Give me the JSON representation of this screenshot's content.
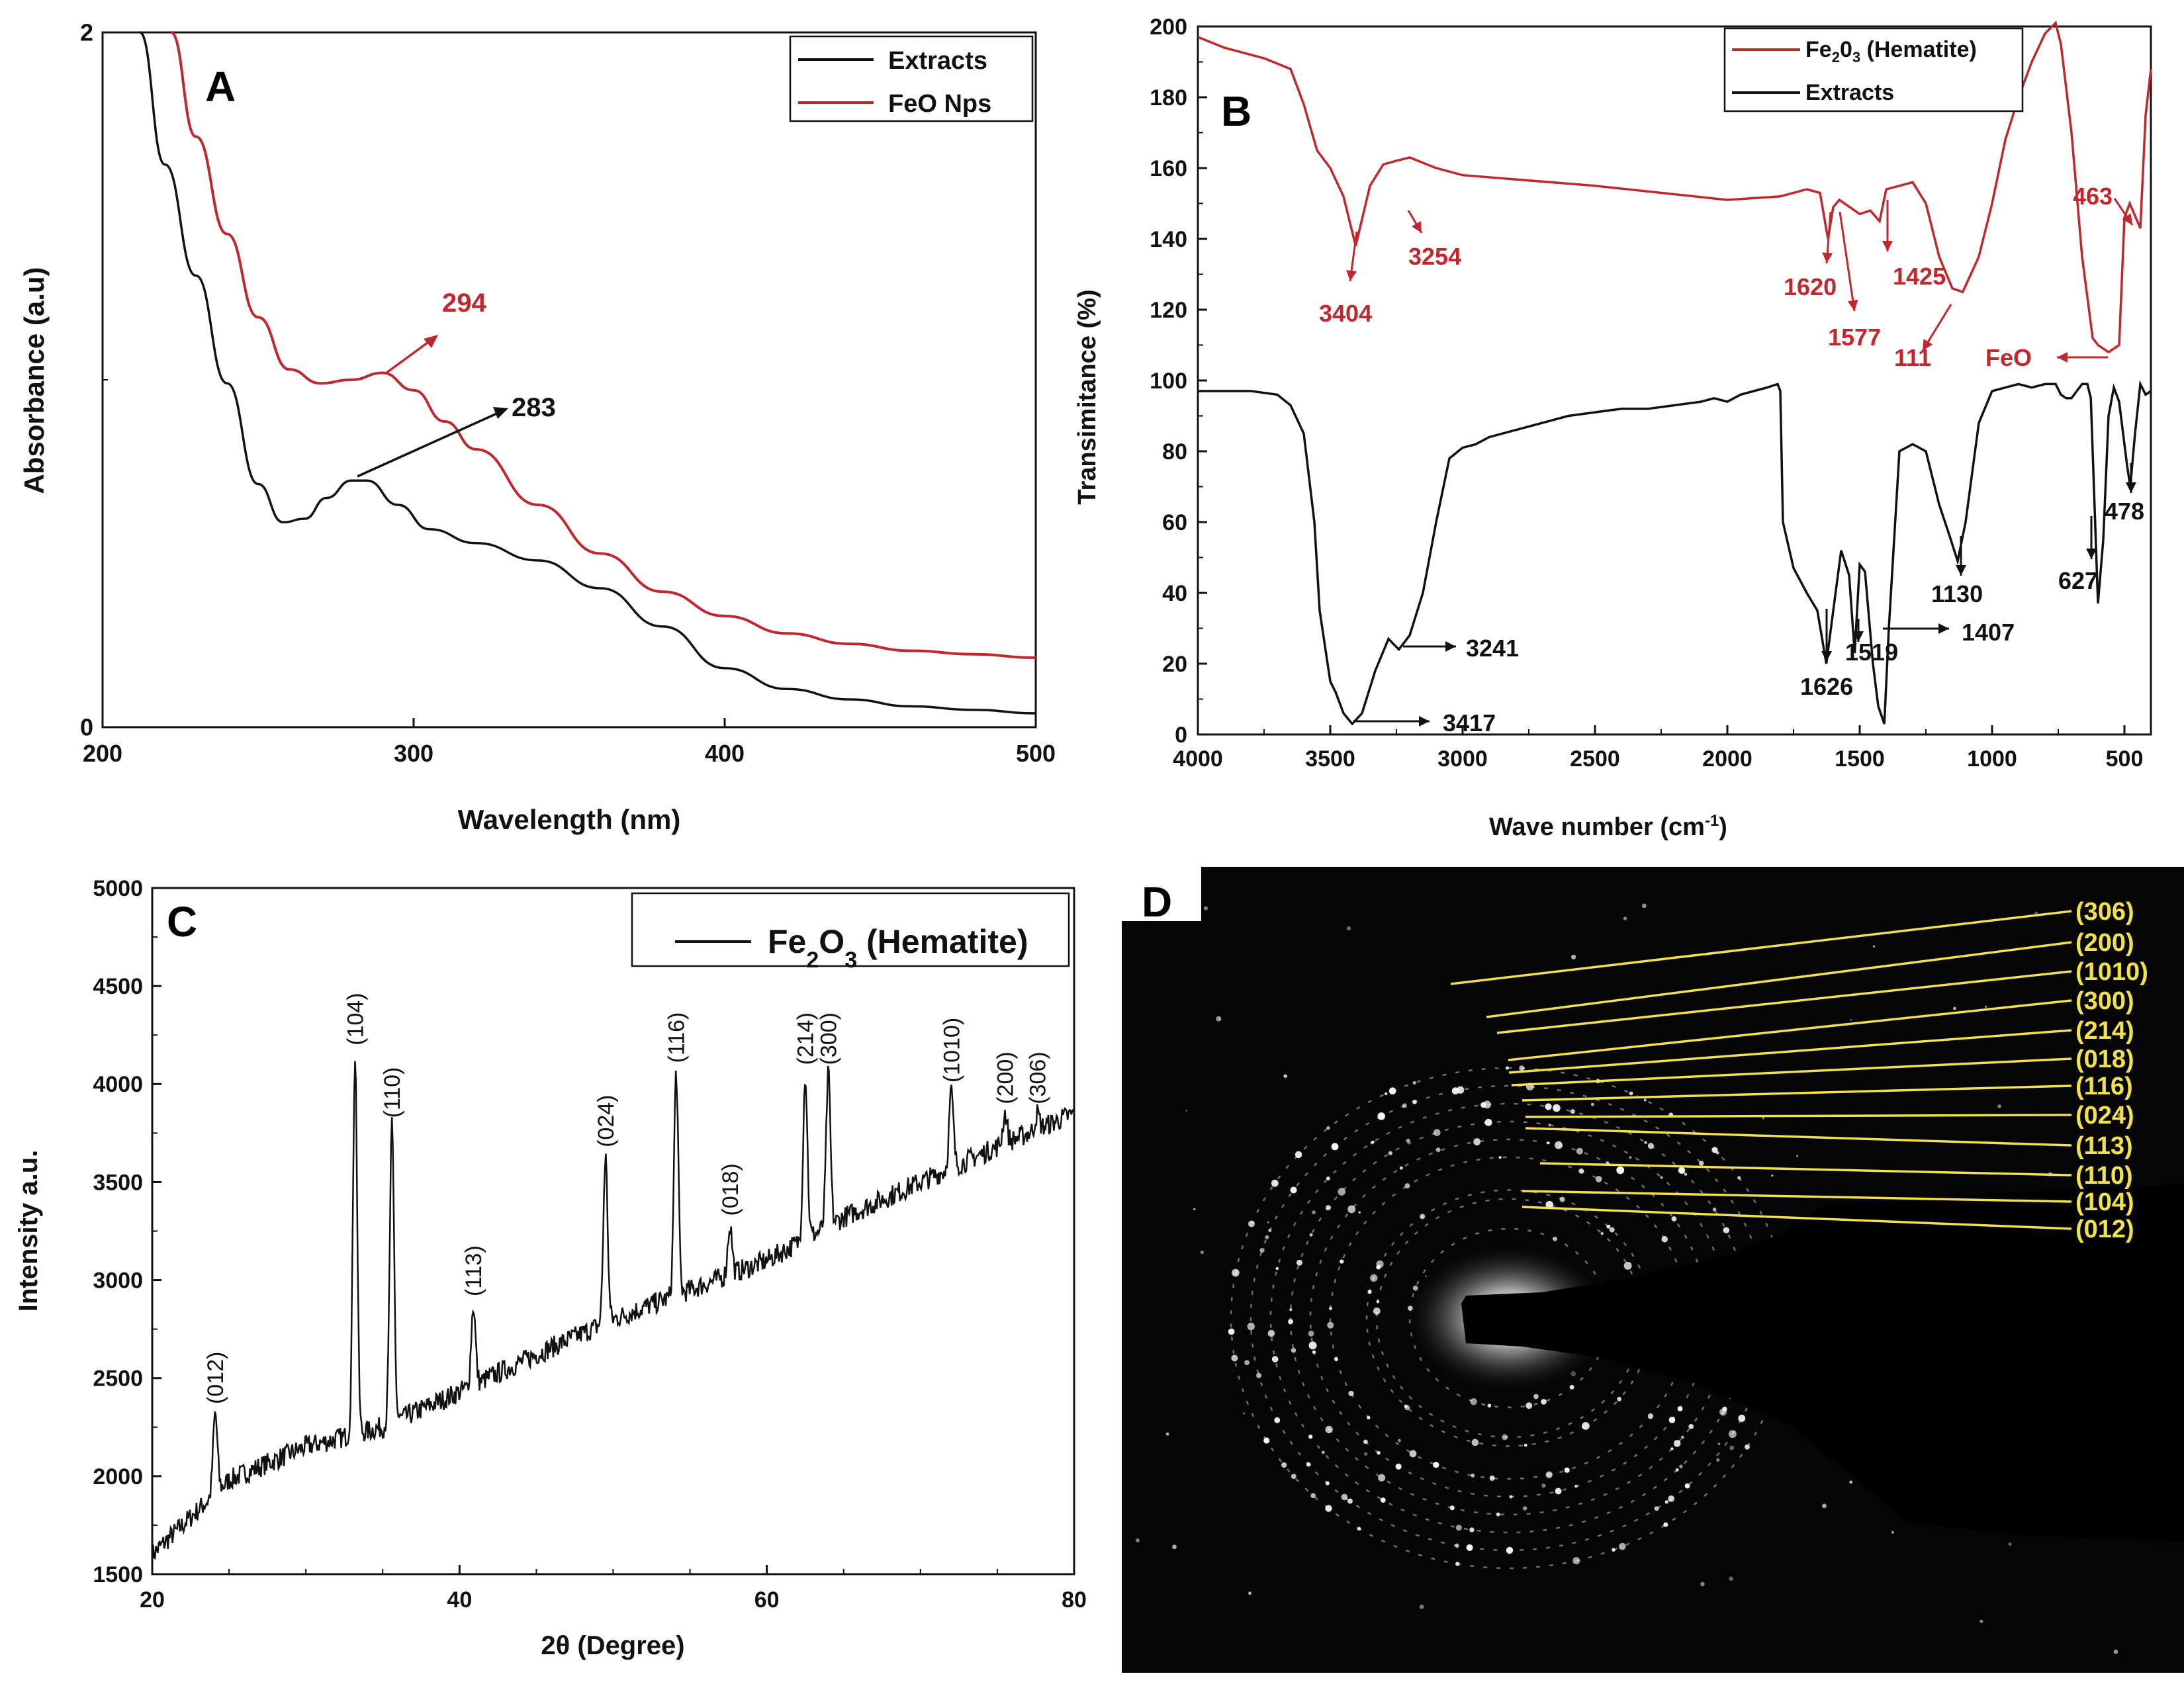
{
  "colors": {
    "red": "#c0282d",
    "black": "#111111",
    "yellow": "#f2e14a"
  },
  "chart_data": [
    {
      "panel": "A",
      "type": "line",
      "xlabel": "Wavelength (nm)",
      "ylabel": "Absorbance (a.u)",
      "xlim": [
        200,
        500
      ],
      "ylim": [
        0,
        2
      ],
      "xticks": [
        200,
        300,
        400,
        500
      ],
      "yticks": [
        0,
        2
      ],
      "legend": [
        "Extracts",
        "FeO Nps"
      ],
      "series": [
        {
          "name": "Extracts",
          "color": "#111111",
          "x": [
            212,
            220,
            230,
            240,
            250,
            258,
            265,
            272,
            280,
            285,
            295,
            305,
            320,
            340,
            360,
            380,
            400,
            420,
            440,
            460,
            480,
            500
          ],
          "y": [
            2.0,
            1.62,
            1.3,
            0.99,
            0.7,
            0.59,
            0.6,
            0.66,
            0.71,
            0.71,
            0.64,
            0.57,
            0.53,
            0.48,
            0.4,
            0.29,
            0.17,
            0.11,
            0.08,
            0.06,
            0.05,
            0.04
          ]
        },
        {
          "name": "FeO Nps",
          "color": "#c0282d",
          "x": [
            222,
            230,
            240,
            250,
            260,
            270,
            280,
            290,
            300,
            310,
            320,
            340,
            360,
            380,
            400,
            420,
            440,
            460,
            480,
            500
          ],
          "y": [
            2.0,
            1.7,
            1.42,
            1.18,
            1.03,
            0.99,
            1.0,
            1.02,
            0.97,
            0.88,
            0.8,
            0.64,
            0.5,
            0.39,
            0.32,
            0.27,
            0.24,
            0.22,
            0.21,
            0.2
          ]
        }
      ],
      "annotations": [
        {
          "text": "294",
          "color": "#c0282d"
        },
        {
          "text": "283",
          "color": "#111111"
        }
      ]
    },
    {
      "panel": "B",
      "type": "line",
      "xlabel": "Wave number (cm⁻¹)",
      "ylabel": "Transimitance (%)",
      "xlim": [
        4000,
        400
      ],
      "ylim": [
        0,
        200
      ],
      "xticks": [
        4000,
        3500,
        3000,
        2500,
        2000,
        1500,
        1000,
        500
      ],
      "yticks": [
        0,
        20,
        40,
        60,
        80,
        100,
        120,
        140,
        160,
        180,
        200
      ],
      "legend": [
        "Fe₂O₃ (Hematite)",
        "Extracts"
      ],
      "series": [
        {
          "name": "Fe2O3 (Hematite)",
          "color": "#c0282d",
          "x": [
            4000,
            3900,
            3750,
            3650,
            3600,
            3550,
            3500,
            3450,
            3404,
            3350,
            3300,
            3254,
            3200,
            3100,
            3000,
            2500,
            2000,
            1800,
            1700,
            1650,
            1620,
            1600,
            1577,
            1500,
            1460,
            1425,
            1400,
            1300,
            1250,
            1200,
            1150,
            1111,
            1050,
            1000,
            950,
            900,
            850,
            800,
            760,
            740,
            700,
            660,
            620,
            600,
            560,
            520,
            500,
            480,
            463,
            440,
            420,
            400
          ],
          "y": [
            197,
            194,
            191,
            188,
            178,
            165,
            160,
            152,
            138,
            155,
            161,
            162,
            163,
            160,
            158,
            155,
            151,
            152,
            154,
            153,
            140,
            149,
            151,
            147,
            148,
            145,
            154,
            156,
            150,
            135,
            126,
            125,
            135,
            150,
            168,
            180,
            190,
            198,
            201,
            195,
            170,
            135,
            112,
            110,
            108,
            110,
            146,
            150,
            147,
            143,
            175,
            188
          ]
        },
        {
          "name": "Extracts",
          "color": "#111111",
          "x": [
            4000,
            3800,
            3700,
            3650,
            3600,
            3560,
            3540,
            3500,
            3480,
            3450,
            3417,
            3380,
            3330,
            3280,
            3241,
            3200,
            3150,
            3100,
            3050,
            3000,
            2950,
            2900,
            2800,
            2700,
            2600,
            2500,
            2400,
            2300,
            2200,
            2100,
            2050,
            2000,
            1950,
            1900,
            1850,
            1810,
            1800,
            1790,
            1750,
            1700,
            1660,
            1626,
            1600,
            1570,
            1540,
            1519,
            1500,
            1480,
            1450,
            1430,
            1407,
            1390,
            1350,
            1300,
            1250,
            1200,
            1160,
            1130,
            1100,
            1050,
            1000,
            950,
            900,
            850,
            800,
            760,
            740,
            720,
            700,
            680,
            660,
            640,
            627,
            600,
            580,
            560,
            540,
            520,
            500,
            490,
            478,
            460,
            440,
            420,
            400
          ],
          "y": [
            97,
            97,
            96,
            93,
            85,
            60,
            35,
            15,
            12,
            6,
            3,
            6,
            18,
            27,
            24,
            28,
            40,
            60,
            78,
            81,
            82,
            84,
            86,
            88,
            90,
            91,
            92,
            92,
            93,
            94,
            95,
            94,
            96,
            97,
            98,
            99,
            97,
            60,
            47,
            40,
            35,
            20,
            35,
            52,
            45,
            23,
            48,
            46,
            20,
            8,
            3,
            30,
            80,
            82,
            80,
            65,
            56,
            49,
            60,
            88,
            97,
            98,
            99,
            98,
            99,
            99,
            96,
            95,
            95,
            97,
            99,
            99,
            95,
            37,
            55,
            90,
            98,
            94,
            82,
            76,
            70,
            85,
            99,
            96,
            97
          ]
        }
      ],
      "annotations": [
        "3404",
        "3254",
        "1620",
        "1425",
        "1577",
        "111",
        "FeO",
        "463",
        "3241",
        "3417",
        "1626",
        "1519",
        "1407",
        "1130",
        "627",
        "478"
      ]
    },
    {
      "panel": "C",
      "type": "line",
      "xlabel": "2θ (Degree)",
      "ylabel": "Intensity a.u.",
      "xlim": [
        20,
        80
      ],
      "ylim": [
        1500,
        5000
      ],
      "xticks": [
        20,
        40,
        60,
        80
      ],
      "yticks": [
        1500,
        2000,
        2500,
        3000,
        3500,
        4000,
        4500,
        5000
      ],
      "legend": [
        "Fe2O3 (Hematite)"
      ],
      "baseline": {
        "x": [
          20,
          25,
          30,
          35,
          40,
          45,
          50,
          55,
          60,
          65,
          70,
          75,
          80
        ],
        "y": [
          1600,
          1980,
          2150,
          2250,
          2430,
          2620,
          2800,
          2950,
          3100,
          3320,
          3500,
          3680,
          3850
        ]
      },
      "peaks": [
        {
          "label": "(012)",
          "x": 24.1,
          "y": 2320
        },
        {
          "label": "(104)",
          "x": 33.2,
          "y": 4150
        },
        {
          "label": "(110)",
          "x": 35.6,
          "y": 3780
        },
        {
          "label": "(113)",
          "x": 40.9,
          "y": 2870
        },
        {
          "label": "(024)",
          "x": 49.5,
          "y": 3630
        },
        {
          "label": "(116)",
          "x": 54.1,
          "y": 4060
        },
        {
          "label": "(018)",
          "x": 57.6,
          "y": 3280
        },
        {
          "label": "(214)",
          "x": 62.5,
          "y": 4050
        },
        {
          "label": "(300)",
          "x": 64.0,
          "y": 4050
        },
        {
          "label": "(1010)",
          "x": 72.0,
          "y": 3960
        },
        {
          "label": "(200)",
          "x": 75.5,
          "y": 3850
        },
        {
          "label": "(306)",
          "x": 77.6,
          "y": 3850
        }
      ]
    }
  ],
  "panelA": {
    "letter": "A",
    "xlabel": "Wavelength (nm)",
    "ylabel": "Absorbance (a.u)",
    "legend": [
      "Extracts",
      "FeO Nps"
    ],
    "ann_294": "294",
    "ann_283": "283"
  },
  "panelB": {
    "letter": "B",
    "xlabel_main": "Wave number (cm",
    "xlabel_sup": "-1",
    "xlabel_end": ")",
    "ylabel": "Transimitance (%)",
    "legend_red_main": "Fe",
    "legend_red_sub1": "2",
    "legend_red_mid": "0",
    "legend_red_sub2": "3",
    "legend_red_end": " (Hematite)",
    "legend_black": "Extracts"
  },
  "panelC": {
    "letter": "C",
    "xlabel": "2θ (Degree)",
    "ylabel": "Intensity a.u.",
    "legend_main": "Fe",
    "legend_sub1": "2",
    "legend_mid": "O",
    "legend_sub2": "3",
    "legend_end": " (Hematite)"
  },
  "panelD": {
    "letter": "D",
    "labels": [
      "(306)",
      "(200)",
      "(1010)",
      "(300)",
      "(214)",
      "(018)",
      "(116)",
      "(024)",
      "(113)",
      "(110)",
      "(104)",
      "(012)"
    ]
  }
}
